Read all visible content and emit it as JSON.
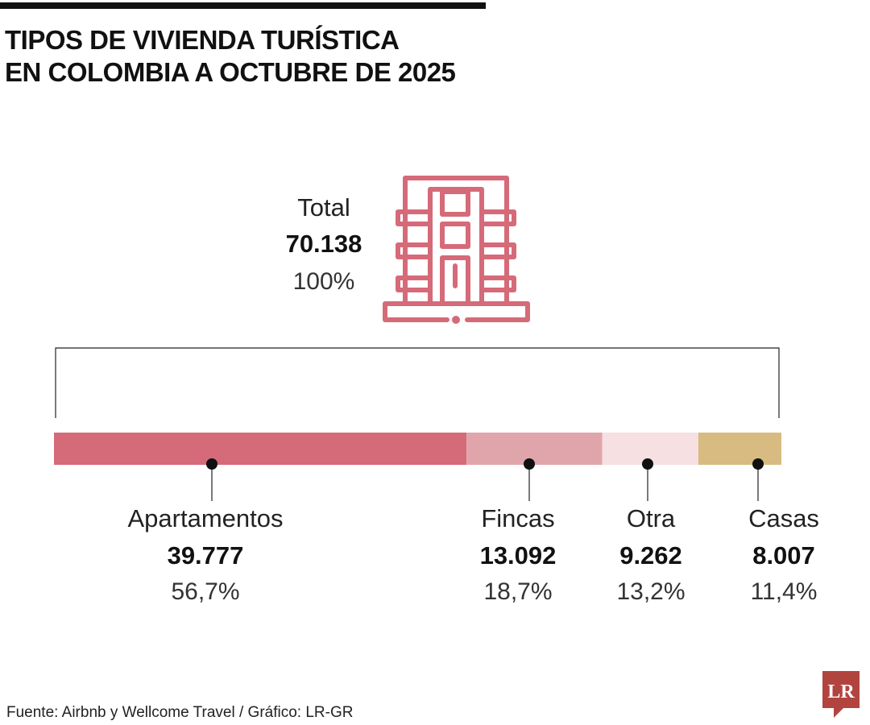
{
  "title_lines": [
    "TIPOS DE VIVIENDA TURÍSTICA",
    "EN COLOMBIA A OCTUBRE DE 2025"
  ],
  "total": {
    "label": "Total",
    "value": "70.138",
    "percent": "100%"
  },
  "icon": "apartment-building-icon",
  "chart_data": {
    "type": "bar",
    "orientation": "horizontal-stacked",
    "categories": [
      "Apartamentos",
      "Fincas",
      "Otra",
      "Casas"
    ],
    "values": [
      39777,
      13092,
      9262,
      8007
    ],
    "value_labels": [
      "39.777",
      "13.092",
      "9.262",
      "8.007"
    ],
    "percent_labels": [
      "56,7%",
      "18,7%",
      "13,2%",
      "11,4%"
    ],
    "percents": [
      56.7,
      18.7,
      13.2,
      11.4
    ],
    "colors": [
      "#d56a79",
      "#e0a5aa",
      "#f6e0e1",
      "#d7bb80"
    ],
    "total": 70138
  },
  "source": "Fuente: Airbnb y Wellcome Travel / Gráfico: LR-GR",
  "logo_text": "LR",
  "colors": {
    "accent": "#d56a79",
    "logo": "#b2443f"
  }
}
